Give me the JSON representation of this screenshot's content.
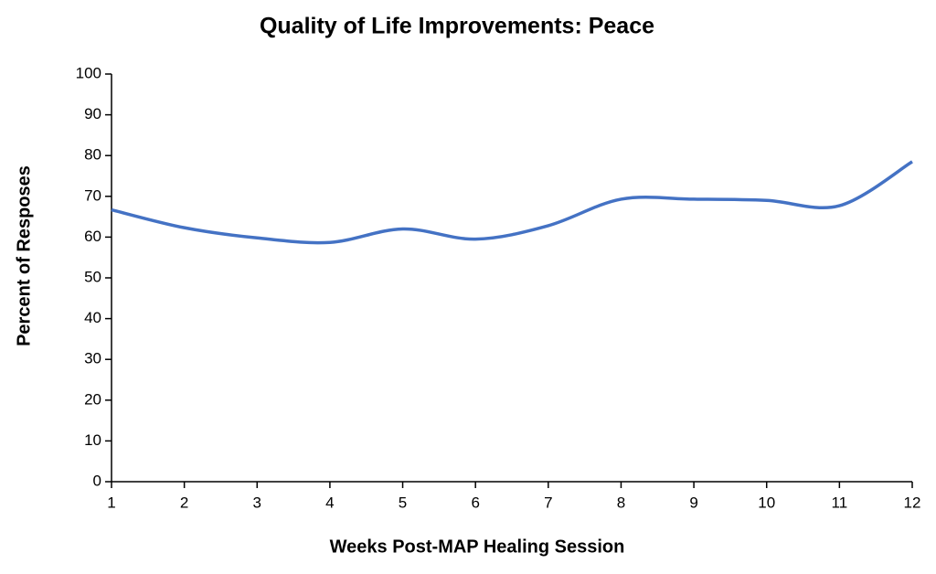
{
  "chart_data": {
    "type": "line",
    "title": "Quality of Life Improvements: Peace",
    "x_label": "Weeks Post-MAP Healing Session",
    "y_label": "Percent of Resposes",
    "x": [
      1,
      2,
      3,
      4,
      5,
      6,
      7,
      8,
      9,
      10,
      11,
      12
    ],
    "values": [
      66.7,
      62.3,
      59.8,
      58.7,
      62,
      59.5,
      62.8,
      69.3,
      69.3,
      69,
      67.7,
      78.5
    ],
    "color": "#4472c4",
    "xlim": [
      1,
      12
    ],
    "xticks": [
      1,
      2,
      3,
      4,
      5,
      6,
      7,
      8,
      9,
      10,
      11,
      12
    ],
    "ylim": [
      0,
      100
    ],
    "yticks": [
      0,
      10,
      20,
      30,
      40,
      50,
      60,
      70,
      80,
      90,
      100
    ],
    "grid": false,
    "smooth": true
  }
}
